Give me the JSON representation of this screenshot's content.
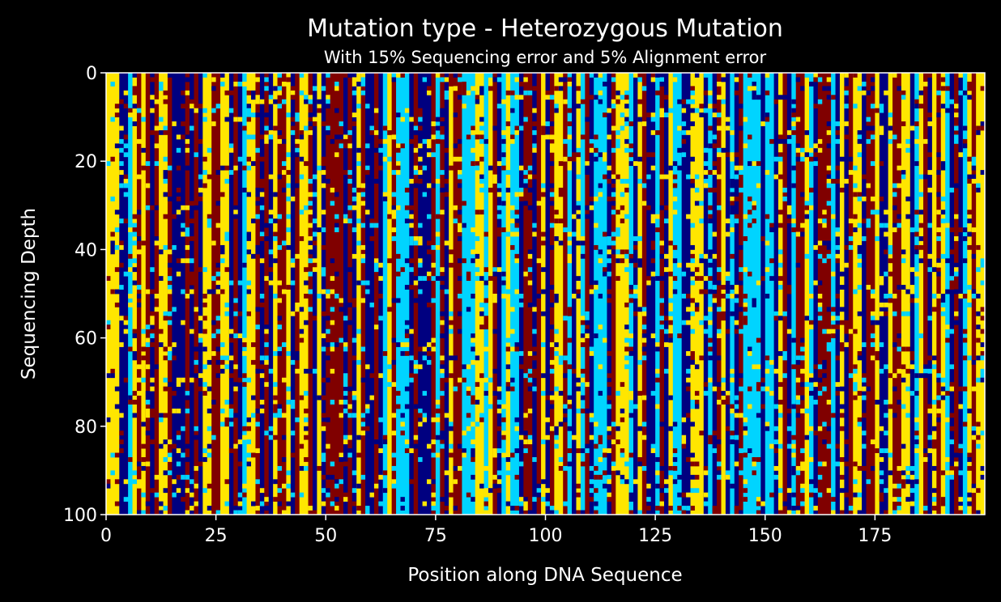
{
  "chart_data": {
    "type": "heatmap",
    "title": "Mutation type - Heterozygous Mutation",
    "subtitle": "With 15% Sequencing error and 5% Alignment error",
    "xlabel": "Position along DNA Sequence",
    "ylabel": "Sequencing Depth",
    "x_range": [
      0,
      200
    ],
    "y_range": [
      0,
      100
    ],
    "y_inverted": true,
    "n_columns": 200,
    "n_rows": 100,
    "x_ticks": [
      "0",
      "25",
      "50",
      "75",
      "100",
      "125",
      "150",
      "175"
    ],
    "y_ticks": [
      "0",
      "20",
      "40",
      "60",
      "80",
      "100"
    ],
    "color_categories": [
      {
        "color": "#000080"
      },
      {
        "color": "#00d4ff"
      },
      {
        "color": "#ffe600"
      },
      {
        "color": "#800000"
      }
    ],
    "column_base_categories": [
      2,
      2,
      2,
      0,
      0,
      1,
      2,
      3,
      2,
      3,
      0,
      3,
      2,
      2,
      3,
      0,
      0,
      0,
      3,
      0,
      3,
      0,
      2,
      2,
      3,
      3,
      2,
      2,
      0,
      3,
      0,
      1,
      2,
      2,
      3,
      0,
      3,
      0,
      2,
      3,
      3,
      2,
      0,
      3,
      2,
      2,
      3,
      0,
      2,
      0,
      3,
      3,
      3,
      3,
      0,
      3,
      0,
      2,
      3,
      0,
      0,
      3,
      0,
      1,
      2,
      3,
      1,
      1,
      1,
      0,
      3,
      0,
      0,
      0,
      3,
      1,
      3,
      0,
      2,
      3,
      3,
      1,
      1,
      1,
      2,
      2,
      1,
      2,
      3,
      0,
      1,
      2,
      1,
      1,
      0,
      3,
      3,
      0,
      3,
      2,
      0,
      3,
      2,
      2,
      3,
      1,
      0,
      2,
      1,
      3,
      0,
      1,
      1,
      1,
      0,
      3,
      2,
      2,
      2,
      1,
      0,
      2,
      3,
      0,
      0,
      1,
      3,
      0,
      2,
      1,
      1,
      0,
      0,
      2,
      2,
      2,
      0,
      1,
      0,
      3,
      2,
      0,
      1,
      0,
      3,
      1,
      1,
      1,
      1,
      0,
      1,
      1,
      0,
      2,
      3,
      0,
      1,
      3,
      3,
      2,
      1,
      0,
      3,
      3,
      3,
      1,
      0,
      2,
      0,
      3,
      2,
      2,
      0,
      3,
      3,
      2,
      0,
      0,
      2,
      3,
      3,
      2,
      2,
      0,
      1,
      2,
      3,
      0,
      2,
      3,
      2,
      1,
      0,
      3,
      0,
      1,
      2,
      3,
      2,
      2
    ],
    "read_error_rate": 0.15
  }
}
